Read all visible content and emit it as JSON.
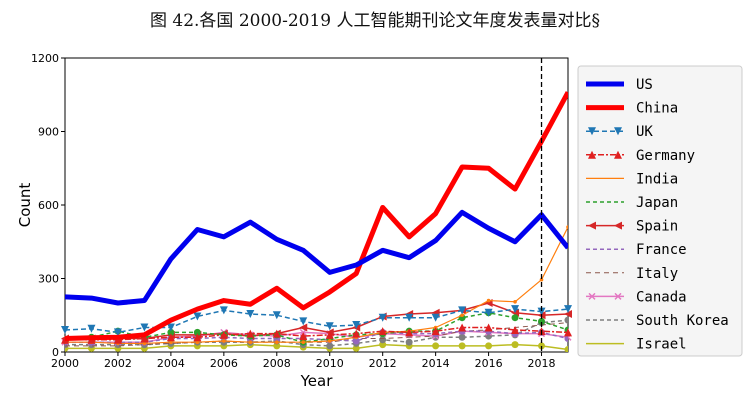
{
  "chart_data": {
    "type": "line",
    "title": "图 42.各国 2000-2019 人工智能期刊论文年度发表量对比§",
    "xlabel": "Year",
    "ylabel": "Count",
    "xlim": [
      2000,
      2019
    ],
    "ylim": [
      0,
      1200
    ],
    "xticks": [
      2000,
      2002,
      2004,
      2006,
      2008,
      2010,
      2012,
      2014,
      2016,
      2018
    ],
    "yticks": [
      0,
      300,
      600,
      900,
      1200
    ],
    "vline": 2018,
    "legend_position": "right",
    "x": [
      2000,
      2001,
      2002,
      2003,
      2004,
      2005,
      2006,
      2007,
      2008,
      2009,
      2010,
      2011,
      2012,
      2013,
      2014,
      2015,
      2016,
      2017,
      2018,
      2019
    ],
    "series": [
      {
        "name": "US",
        "color": "#0000ee",
        "width": 5,
        "dash": "",
        "marker": "",
        "values": [
          225,
          220,
          200,
          210,
          380,
          500,
          470,
          530,
          460,
          415,
          325,
          355,
          415,
          385,
          455,
          570,
          505,
          450,
          560,
          425
        ]
      },
      {
        "name": "China",
        "color": "#ff0000",
        "width": 5,
        "dash": "",
        "marker": "",
        "values": [
          55,
          58,
          60,
          70,
          130,
          175,
          210,
          195,
          260,
          180,
          245,
          320,
          590,
          470,
          565,
          755,
          750,
          665,
          860,
          1060
        ]
      },
      {
        "name": "UK",
        "color": "#1f77b4",
        "width": 1.5,
        "dash": "5,3",
        "marker": "tri-down",
        "values": [
          90,
          95,
          80,
          100,
          100,
          145,
          170,
          155,
          150,
          125,
          105,
          110,
          140,
          140,
          140,
          170,
          160,
          175,
          165,
          175
        ]
      },
      {
        "name": "Germany",
        "color": "#e02020",
        "width": 1.5,
        "dash": "6,2,2,2",
        "marker": "tri-up",
        "values": [
          50,
          50,
          50,
          55,
          60,
          60,
          70,
          75,
          75,
          65,
          70,
          75,
          85,
          80,
          85,
          100,
          100,
          90,
          85,
          80
        ]
      },
      {
        "name": "India",
        "color": "#ff7f0e",
        "width": 1.2,
        "dash": "",
        "marker": "dot-small",
        "values": [
          40,
          40,
          35,
          35,
          40,
          40,
          45,
          40,
          40,
          40,
          45,
          60,
          80,
          85,
          100,
          150,
          210,
          205,
          295,
          510
        ]
      },
      {
        "name": "Japan",
        "color": "#2ca02c",
        "width": 1.5,
        "dash": "4,3",
        "marker": "circle",
        "values": [
          50,
          60,
          85,
          60,
          80,
          80,
          70,
          65,
          70,
          40,
          55,
          70,
          75,
          85,
          85,
          140,
          160,
          140,
          125,
          90
        ]
      },
      {
        "name": "Spain",
        "color": "#d62728",
        "width": 1.5,
        "dash": "",
        "marker": "tri-left",
        "values": [
          55,
          55,
          55,
          55,
          70,
          70,
          75,
          65,
          75,
          100,
          80,
          100,
          145,
          155,
          160,
          170,
          200,
          160,
          150,
          155
        ]
      },
      {
        "name": "France",
        "color": "#9467bd",
        "width": 1.5,
        "dash": "4,3",
        "marker": "circle",
        "values": [
          40,
          40,
          40,
          40,
          55,
          55,
          60,
          55,
          55,
          55,
          50,
          45,
          80,
          75,
          75,
          85,
          85,
          75,
          80,
          55
        ]
      },
      {
        "name": "Italy",
        "color": "#8c564b",
        "width": 1,
        "dash": "5,4",
        "marker": "",
        "values": [
          25,
          25,
          25,
          30,
          35,
          40,
          45,
          40,
          40,
          40,
          40,
          55,
          55,
          60,
          65,
          85,
          90,
          100,
          110,
          120
        ]
      },
      {
        "name": "Canada",
        "color": "#e377c2",
        "width": 1.5,
        "dash": "",
        "marker": "x",
        "values": [
          40,
          40,
          40,
          40,
          60,
          65,
          80,
          70,
          65,
          80,
          75,
          60,
          75,
          70,
          65,
          85,
          80,
          75,
          75,
          60
        ]
      },
      {
        "name": "South Korea",
        "color": "#7f7f7f",
        "width": 1.5,
        "dash": "4,3",
        "marker": "circle",
        "values": [
          30,
          30,
          30,
          30,
          35,
          40,
          40,
          40,
          45,
          30,
          25,
          35,
          50,
          40,
          60,
          60,
          65,
          70,
          120,
          130
        ]
      },
      {
        "name": "Israel",
        "color": "#bcbd22",
        "width": 1.5,
        "dash": "",
        "marker": "circle",
        "values": [
          15,
          15,
          15,
          15,
          25,
          25,
          25,
          30,
          25,
          20,
          15,
          15,
          30,
          25,
          25,
          25,
          25,
          30,
          25,
          10
        ]
      }
    ]
  }
}
